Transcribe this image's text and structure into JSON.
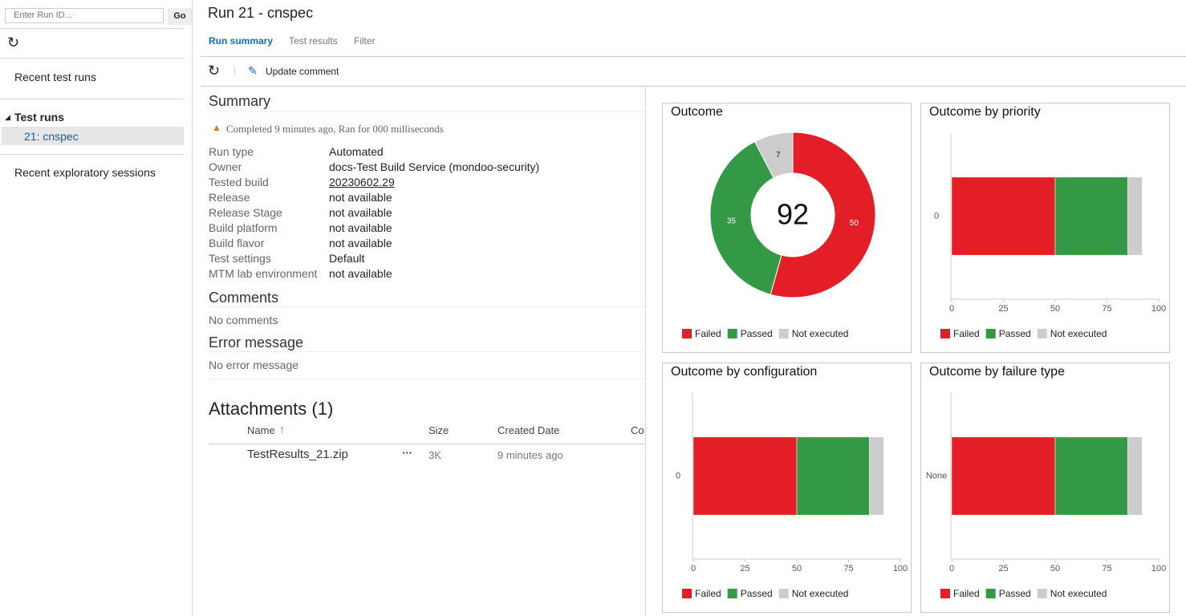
{
  "sidebar": {
    "run_id_placeholder": "Enter Run ID...",
    "go_button": "Go",
    "recent_test_runs": "Recent test runs",
    "test_runs_header": "Test runs",
    "selected_run": "21: cnspec",
    "recent_exploratory": "Recent exploratory sessions"
  },
  "header": {
    "title": "Run 21 - cnspec",
    "tabs": [
      "Run summary",
      "Test results",
      "Filter"
    ]
  },
  "toolbar": {
    "update_comment": "Update comment"
  },
  "summary": {
    "title": "Summary",
    "status": "Completed 9 minutes ago, Ran for 000 milliseconds",
    "fields": [
      [
        "Run type",
        "Automated"
      ],
      [
        "Owner",
        "docs-Test Build Service (mondoo-security)"
      ],
      [
        "Tested build",
        "20230602.29"
      ],
      [
        "Release",
        "not available"
      ],
      [
        "Release Stage",
        "not available"
      ],
      [
        "Build platform",
        "not available"
      ],
      [
        "Build flavor",
        "not available"
      ],
      [
        "Test settings",
        "Default"
      ],
      [
        "MTM lab environment",
        "not available"
      ]
    ]
  },
  "comments": {
    "title": "Comments",
    "text": "No comments"
  },
  "error_message": {
    "title": "Error message",
    "text": "No error message"
  },
  "attachments": {
    "title": "Attachments (1)",
    "columns": [
      "Name",
      "Size",
      "Created Date",
      "Co"
    ],
    "rows": [
      [
        "TestResults_21.zip",
        "3K",
        "9 minutes ago"
      ]
    ]
  },
  "chart_data": [
    {
      "type": "donut",
      "title": "Outcome",
      "categories": [
        "Failed",
        "Passed",
        "Not executed"
      ],
      "values": [
        50,
        35,
        7
      ],
      "colors": [
        "#e31e26",
        "#339944",
        "#cccccc"
      ],
      "total": 92
    },
    {
      "type": "bar",
      "orientation": "horizontal",
      "stacked": true,
      "title": "Outcome by priority",
      "categories": [
        "0"
      ],
      "series": [
        {
          "name": "Failed",
          "color": "#e31e26",
          "values": [
            50
          ]
        },
        {
          "name": "Passed",
          "color": "#339944",
          "values": [
            35
          ]
        },
        {
          "name": "Not executed",
          "color": "#cccccc",
          "values": [
            7
          ]
        }
      ],
      "xlim": [
        0,
        100
      ],
      "xticks": [
        0,
        25,
        50,
        75,
        100
      ]
    },
    {
      "type": "bar",
      "orientation": "horizontal",
      "stacked": true,
      "title": "Outcome by configuration",
      "categories": [
        "0"
      ],
      "series": [
        {
          "name": "Failed",
          "color": "#e31e26",
          "values": [
            50
          ]
        },
        {
          "name": "Passed",
          "color": "#339944",
          "values": [
            35
          ]
        },
        {
          "name": "Not executed",
          "color": "#cccccc",
          "values": [
            7
          ]
        }
      ],
      "xlim": [
        0,
        100
      ],
      "xticks": [
        0,
        25,
        50,
        75,
        100
      ]
    },
    {
      "type": "bar",
      "orientation": "horizontal",
      "stacked": true,
      "title": "Outcome by failure type",
      "categories": [
        "None"
      ],
      "series": [
        {
          "name": "Failed",
          "color": "#e31e26",
          "values": [
            50
          ]
        },
        {
          "name": "Passed",
          "color": "#339944",
          "values": [
            35
          ]
        },
        {
          "name": "Not executed",
          "color": "#cccccc",
          "values": [
            7
          ]
        }
      ],
      "xlim": [
        0,
        100
      ],
      "xticks": [
        0,
        25,
        50,
        75,
        100
      ]
    }
  ]
}
